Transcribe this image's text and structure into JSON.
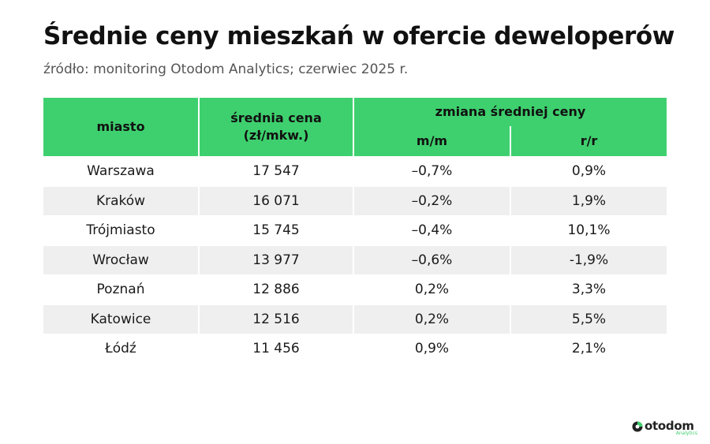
{
  "title": "Średnie ceny mieszkań w ofercie deweloperów",
  "subtitle": "źródło: monitoring Otodom Analytics; czerwiec 2025 r.",
  "colors": {
    "header_green": "#3ed06e",
    "stripe_gray": "#efefef",
    "text": "#1a1a1a"
  },
  "chart_data": {
    "type": "table",
    "columns": {
      "city": "miasto",
      "price": "średnia cena (zł/mkw.)",
      "change_group": "zmiana średniej ceny",
      "mm": "m/m",
      "rr": "r/r"
    },
    "rows": [
      {
        "city": "Warszawa",
        "price": "17 547",
        "mm": "–0,7%",
        "rr": "0,9%"
      },
      {
        "city": "Kraków",
        "price": "16 071",
        "mm": "–0,2%",
        "rr": "1,9%"
      },
      {
        "city": "Trójmiasto",
        "price": "15 745",
        "mm": "–0,4%",
        "rr": "10,1%"
      },
      {
        "city": "Wrocław",
        "price": "13 977",
        "mm": "–0,6%",
        "rr": "-1,9%"
      },
      {
        "city": "Poznań",
        "price": "12 886",
        "mm": "0,2%",
        "rr": "3,3%"
      },
      {
        "city": "Katowice",
        "price": "12 516",
        "mm": "0,2%",
        "rr": "5,5%"
      },
      {
        "city": "Łódź",
        "price": "11 456",
        "mm": "0,9%",
        "rr": "2,1%"
      }
    ]
  },
  "logo": {
    "word": "otodom",
    "sub": "Analytics",
    "icon": "otodom-logo-icon"
  }
}
